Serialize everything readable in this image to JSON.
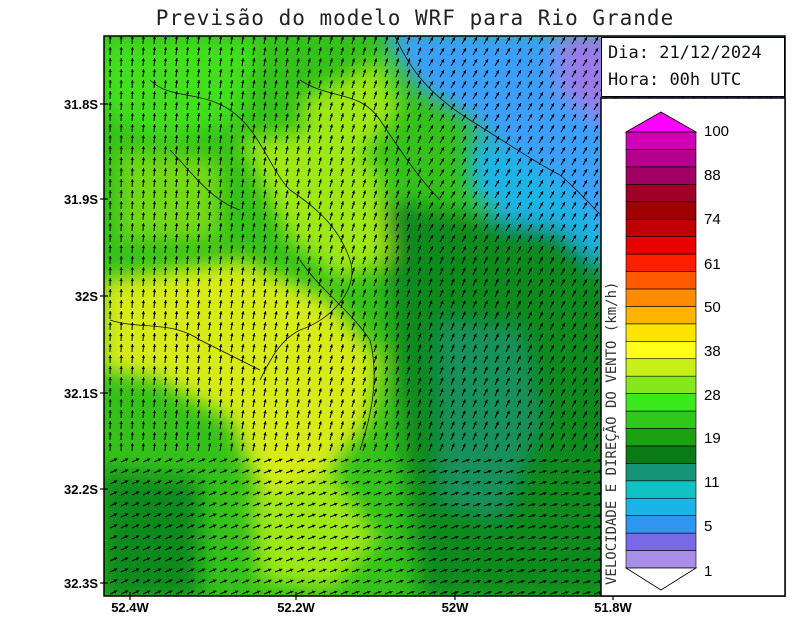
{
  "title": "Previsão do modelo WRF para Rio Grande",
  "info": {
    "date_label": "Dia:",
    "date_value": "21/12/2024",
    "hour_label": "Hora:",
    "hour_value": "00h UTC"
  },
  "lat_ticks": [
    "31.8S",
    "31.9S",
    "32S",
    "32.1S",
    "32.2S",
    "32.3S"
  ],
  "lon_ticks": [
    "52.4W",
    "52.2W",
    "52W",
    "51.8W"
  ],
  "colorbar": {
    "title": "VELOCIDADE E DIREÇÃO DO VENTO (km/h)",
    "labels": [
      "1",
      "5",
      "11",
      "19",
      "28",
      "38",
      "50",
      "61",
      "74",
      "88",
      "100"
    ],
    "colors": [
      "#a98ee8",
      "#7a6ae8",
      "#2e96ee",
      "#1ab4e6",
      "#10c2c4",
      "#169478",
      "#0a7a14",
      "#1ca014",
      "#30c81a",
      "#3ce81e",
      "#86e81a",
      "#c8f018",
      "#ffff18",
      "#ffe400",
      "#ffb400",
      "#ff8c00",
      "#ff5a00",
      "#ff1e00",
      "#e60000",
      "#c00000",
      "#a00000",
      "#a00028",
      "#a00064",
      "#b4008c",
      "#d200b4"
    ],
    "top_color": "#ff00ff"
  },
  "wind_colors": {
    "ocean_calm": "#3a9fff",
    "ocean_mid": "#1ab4e6",
    "teal": "#169478",
    "dark_green": "#0a8a1a",
    "green": "#34c21a",
    "bright_green": "#42e01e",
    "lime": "#9ee818",
    "yellow": "#e8f018",
    "purple": "#9a7ae8"
  }
}
